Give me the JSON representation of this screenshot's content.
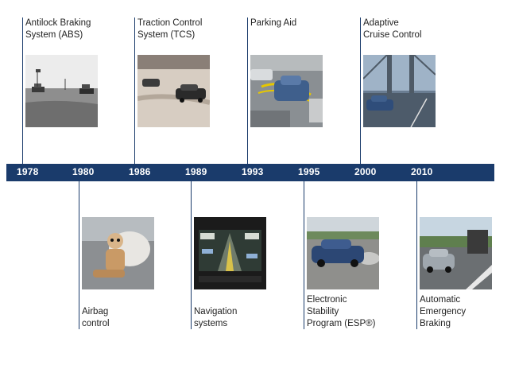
{
  "timeline": {
    "years": [
      "1978",
      "1980",
      "1986",
      "1989",
      "1993",
      "1995",
      "2000",
      "2010"
    ],
    "events": [
      {
        "year": "1978",
        "label": "Antilock Braking\nSystem (ABS)",
        "photo": "abs-test-cars-photo"
      },
      {
        "year": "1980",
        "label": "Airbag\ncontrol",
        "photo": "airbag-crash-dummy-photo"
      },
      {
        "year": "1986",
        "label": "Traction Control\nSystem (TCS)",
        "photo": "tcs-test-track-photo"
      },
      {
        "year": "1989",
        "label": "Navigation\nsystems",
        "photo": "navigation-screen-photo"
      },
      {
        "year": "1993",
        "label": "Parking Aid",
        "photo": "parking-aid-photo"
      },
      {
        "year": "1995",
        "label": "Electronic\nStability\nProgram (ESP®)",
        "photo": "esp-car-photo"
      },
      {
        "year": "2000",
        "label": "Adaptive\nCruise Control",
        "photo": "adaptive-cruise-photo"
      },
      {
        "year": "2010",
        "label": "Automatic\nEmergency\nBraking",
        "photo": "emergency-braking-photo"
      }
    ]
  },
  "colors": {
    "bar": "#1a3b6b",
    "year_text": "#ffffff",
    "label_text": "#222222"
  }
}
